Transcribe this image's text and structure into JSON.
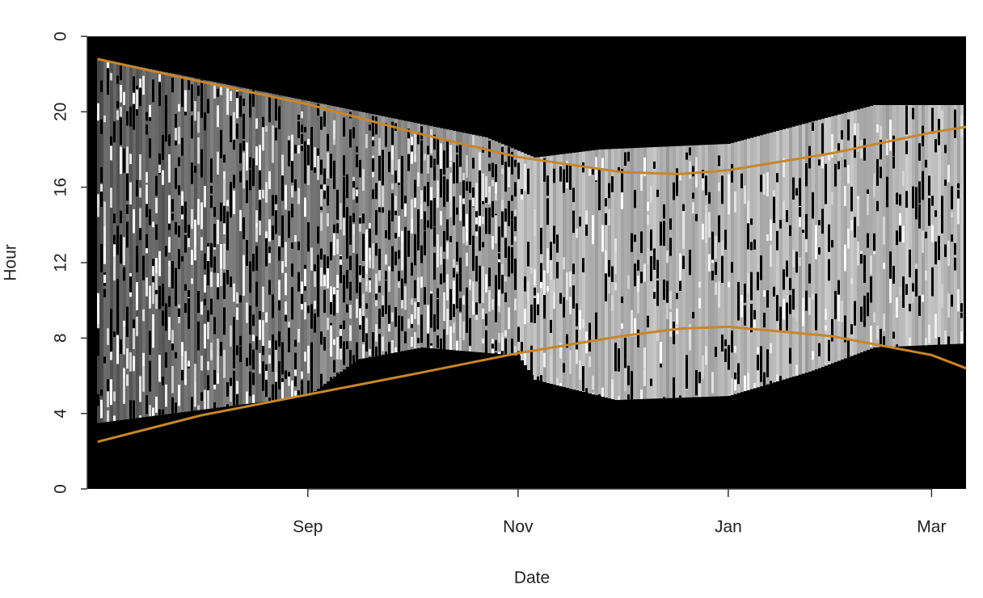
{
  "chart_data": {
    "type": "line",
    "x_label": "Date",
    "y_label": "Hour",
    "x": [
      3,
      33,
      64,
      95,
      125,
      155,
      172,
      186,
      216,
      245,
      255
    ],
    "series": [
      {
        "color": "#c8862a",
        "values": [
          22.8,
          21.6,
          20.4,
          18.9,
          17.6,
          16.8,
          16.7,
          16.9,
          17.8,
          18.9,
          19.2
        ]
      },
      {
        "color": "#c8862a",
        "values": [
          2.5,
          3.9,
          5.0,
          6.1,
          7.2,
          8.1,
          8.5,
          8.6,
          8.1,
          7.1,
          6.4
        ]
      }
    ],
    "xlim": [
      0,
      255
    ],
    "xticks": [
      {
        "value": 64,
        "label": "Sep"
      },
      {
        "value": 125,
        "label": "Nov"
      },
      {
        "value": 186,
        "label": "Jan"
      },
      {
        "value": 245,
        "label": "Mar"
      }
    ],
    "ylim": [
      0,
      24
    ],
    "yticks": [
      0,
      4,
      8,
      12,
      16,
      20,
      {
        "value": 24,
        "label": "0"
      }
    ]
  }
}
